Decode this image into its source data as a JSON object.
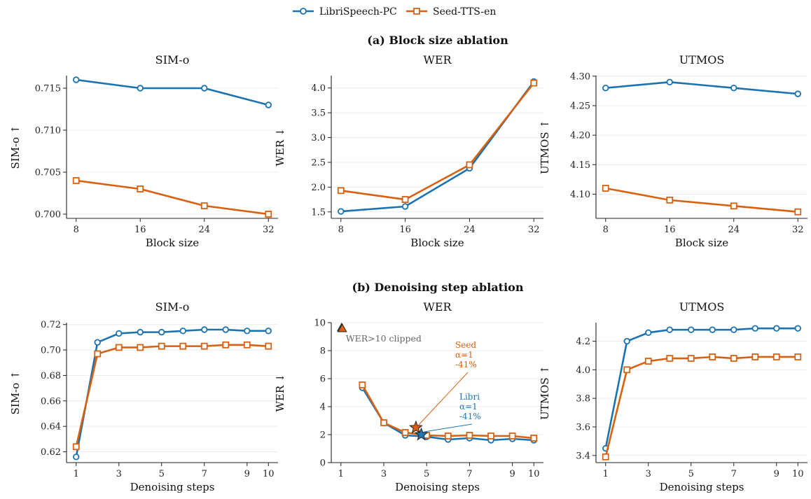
{
  "colors": {
    "libri": "#1f77b4",
    "seed": "#d95f0e",
    "libri_line": "#1a73b0",
    "seed_line": "#d9600f",
    "grid": "#ececec",
    "note": "#666666"
  },
  "legend": [
    {
      "label": "LibriSpeech-PC",
      "series": "libri"
    },
    {
      "label": "Seed-TTS-en",
      "series": "seed"
    }
  ],
  "sections": {
    "a": "(a) Block size ablation",
    "b": "(b) Denoising step ablation"
  },
  "chart_data": [
    {
      "id": "block-sim",
      "type": "line",
      "title": "SIM-o",
      "xlabel": "Block size",
      "ylabel": "SIM-o ↑",
      "x": [
        8,
        16,
        24,
        32
      ],
      "xticks": [
        "8",
        "16",
        "24",
        "32"
      ],
      "yticks": [
        "0.700",
        "0.705",
        "0.710",
        "0.715"
      ],
      "ylim": [
        0.6995,
        0.7165
      ],
      "series": [
        {
          "name": "LibriSpeech-PC",
          "values": [
            0.716,
            0.715,
            0.715,
            0.713
          ]
        },
        {
          "name": "Seed-TTS-en",
          "values": [
            0.704,
            0.703,
            0.701,
            0.7
          ]
        }
      ]
    },
    {
      "id": "block-wer",
      "type": "line",
      "title": "WER",
      "xlabel": "Block size",
      "ylabel": "WER ↓",
      "x": [
        8,
        16,
        24,
        32
      ],
      "xticks": [
        "8",
        "16",
        "24",
        "32"
      ],
      "yticks": [
        "1.5",
        "2.0",
        "2.5",
        "3.0",
        "3.5",
        "4.0"
      ],
      "ylim": [
        1.37,
        4.25
      ],
      "series": [
        {
          "name": "LibriSpeech-PC",
          "values": [
            1.51,
            1.61,
            2.38,
            4.13
          ]
        },
        {
          "name": "Seed-TTS-en",
          "values": [
            1.93,
            1.75,
            2.45,
            4.1
          ]
        }
      ]
    },
    {
      "id": "block-utmos",
      "type": "line",
      "title": "UTMOS",
      "xlabel": "Block size",
      "ylabel": "UTMOS ↑",
      "x": [
        8,
        16,
        24,
        32
      ],
      "xticks": [
        "8",
        "16",
        "24",
        "32"
      ],
      "yticks": [
        "4.10",
        "4.15",
        "4.20",
        "4.25",
        "4.30"
      ],
      "ylim": [
        4.059,
        4.301
      ],
      "series": [
        {
          "name": "LibriSpeech-PC",
          "values": [
            4.28,
            4.29,
            4.28,
            4.27
          ]
        },
        {
          "name": "Seed-TTS-en",
          "values": [
            4.11,
            4.09,
            4.08,
            4.07
          ]
        }
      ]
    },
    {
      "id": "step-sim",
      "type": "line",
      "title": "SIM-o",
      "xlabel": "Denoising steps",
      "ylabel": "SIM-o ↑",
      "x": [
        1,
        2,
        3,
        4,
        5,
        6,
        7,
        8,
        9,
        10
      ],
      "xticks": [
        "1",
        "3",
        "5",
        "7",
        "9",
        "10"
      ],
      "yticks": [
        "0.62",
        "0.64",
        "0.66",
        "0.68",
        "0.70",
        "0.72"
      ],
      "ylim": [
        0.6115,
        0.7215
      ],
      "series": [
        {
          "name": "LibriSpeech-PC",
          "values": [
            0.616,
            0.706,
            0.713,
            0.714,
            0.714,
            0.715,
            0.716,
            0.716,
            0.715,
            0.715
          ]
        },
        {
          "name": "Seed-TTS-en",
          "values": [
            0.624,
            0.697,
            0.702,
            0.702,
            0.703,
            0.703,
            0.703,
            0.704,
            0.704,
            0.703
          ]
        }
      ]
    },
    {
      "id": "step-wer",
      "type": "line",
      "title": "WER",
      "xlabel": "Denoising steps",
      "ylabel": "WER ↓",
      "x": [
        2,
        3,
        4,
        5,
        6,
        7,
        8,
        9,
        10
      ],
      "xticks": [
        "1",
        "3",
        "5",
        "7",
        "9",
        "10"
      ],
      "yticks": [
        "0",
        "2",
        "4",
        "6",
        "8",
        "10"
      ],
      "ylim": [
        0,
        10
      ],
      "series": [
        {
          "name": "LibriSpeech-PC",
          "values": [
            5.35,
            2.85,
            1.95,
            1.85,
            1.65,
            1.75,
            1.6,
            1.7,
            1.6
          ]
        },
        {
          "name": "Seed-TTS-en",
          "values": [
            5.55,
            2.85,
            2.15,
            1.95,
            1.9,
            1.95,
            1.9,
            1.9,
            1.75
          ]
        }
      ],
      "clipped_note": "WER>10 clipped",
      "annotations": [
        {
          "series": "Seed-TTS-en",
          "lines": [
            "Seed",
            "α=1",
            "-41%"
          ],
          "x": 4.5,
          "y": 2.5
        },
        {
          "series": "LibriSpeech-PC",
          "lines": [
            "Libri",
            "α=1",
            "-41%"
          ],
          "x": 4.75,
          "y": 2.0
        }
      ]
    },
    {
      "id": "step-utmos",
      "type": "line",
      "title": "UTMOS",
      "xlabel": "Denoising steps",
      "ylabel": "UTMOS ↑",
      "x": [
        1,
        2,
        3,
        4,
        5,
        6,
        7,
        8,
        9,
        10
      ],
      "xticks": [
        "1",
        "3",
        "5",
        "7",
        "9",
        "10"
      ],
      "yticks": [
        "3.4",
        "3.6",
        "3.8",
        "4.0",
        "4.2"
      ],
      "ylim": [
        3.35,
        4.33
      ],
      "series": [
        {
          "name": "LibriSpeech-PC",
          "values": [
            3.45,
            4.2,
            4.26,
            4.28,
            4.28,
            4.28,
            4.28,
            4.29,
            4.29,
            4.29
          ]
        },
        {
          "name": "Seed-TTS-en",
          "values": [
            3.39,
            4.0,
            4.06,
            4.08,
            4.08,
            4.09,
            4.08,
            4.09,
            4.09,
            4.09
          ]
        }
      ]
    }
  ]
}
